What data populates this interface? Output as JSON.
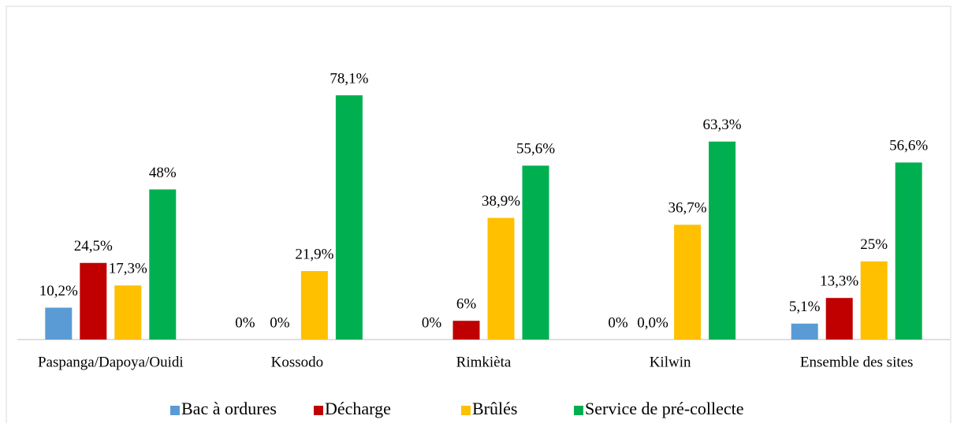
{
  "chart_data": {
    "type": "bar",
    "categories": [
      "Paspanga/Dapoya/Ouidi",
      "Kossodo",
      "Rimkièta",
      "Kilwin",
      "Ensemble des sites"
    ],
    "series": [
      {
        "name": "Bac à ordures",
        "color": "#5b9bd5",
        "values": [
          10.2,
          0,
          0,
          0,
          5.1
        ],
        "value_labels": [
          "10,2%",
          "0%",
          "0%",
          "0%",
          "5,1%"
        ]
      },
      {
        "name": "Décharge",
        "color": "#c00000",
        "values": [
          24.5,
          0,
          6,
          0.0,
          13.3
        ],
        "value_labels": [
          "24,5%",
          "0%",
          "6%",
          "0,0%",
          "13,3%"
        ]
      },
      {
        "name": "Brûlés",
        "color": "#ffc000",
        "values": [
          17.3,
          21.9,
          38.9,
          36.7,
          25
        ],
        "value_labels": [
          "17,3%",
          "21,9%",
          "38,9%",
          "36,7%",
          "25%"
        ]
      },
      {
        "name": "Service de pré-collecte",
        "color": "#00b050",
        "values": [
          48,
          78.1,
          55.6,
          63.3,
          56.6
        ],
        "value_labels": [
          "48%",
          "78,1%",
          "55,6%",
          "63,3%",
          "56,6%"
        ]
      }
    ],
    "legend": "bottom"
  }
}
